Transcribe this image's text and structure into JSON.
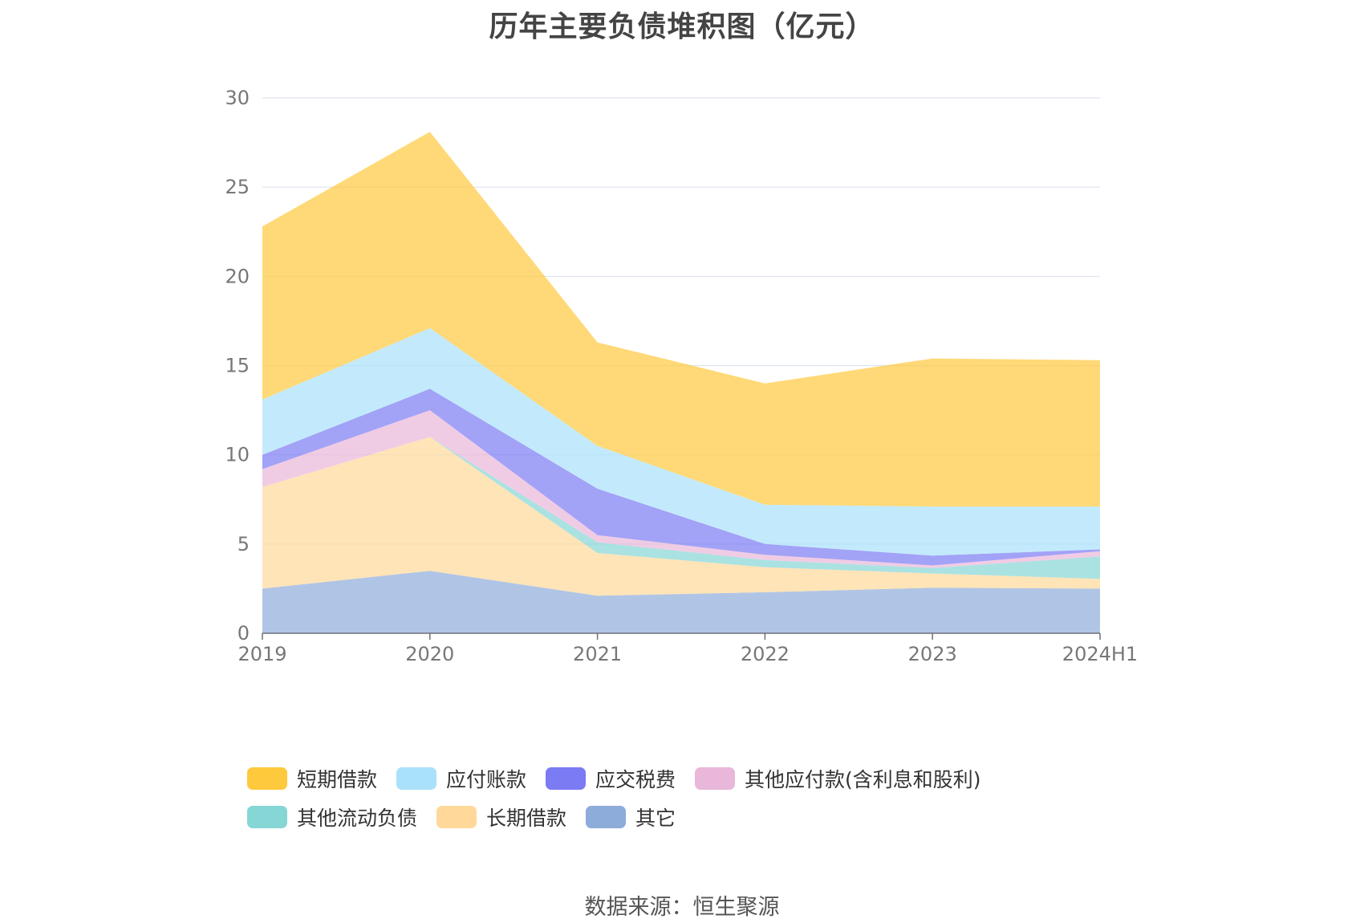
{
  "chart_data": {
    "type": "area",
    "stacked": true,
    "title": "历年主要负债堆积图（亿元）",
    "xlabel": "",
    "ylabel": "",
    "categories": [
      "2019",
      "2020",
      "2021",
      "2022",
      "2023",
      "2024H1"
    ],
    "ylim": [
      0,
      30
    ],
    "yticks": [
      0,
      5,
      10,
      15,
      20,
      25,
      30
    ],
    "grid": true,
    "legend_position": "bottom",
    "series": [
      {
        "name": "其它",
        "color": "#8eacda",
        "values": [
          2.5,
          3.5,
          2.1,
          2.3,
          2.55,
          2.5
        ]
      },
      {
        "name": "长期借款",
        "color": "#ffd89a",
        "values": [
          5.7,
          7.5,
          2.4,
          1.4,
          0.8,
          0.55
        ]
      },
      {
        "name": "其他流动负债",
        "color": "#86d6d6",
        "values": [
          0.0,
          0.0,
          0.6,
          0.4,
          0.3,
          1.25
        ]
      },
      {
        "name": "其他应付款(含利息和股利)",
        "color": "#e9b7d9",
        "values": [
          1.0,
          1.5,
          0.4,
          0.3,
          0.15,
          0.3
        ]
      },
      {
        "name": "应交税费",
        "color": "#7b7bf4",
        "values": [
          0.8,
          1.2,
          2.6,
          0.6,
          0.55,
          0.1
        ]
      },
      {
        "name": "应付账款",
        "color": "#a9e1fb",
        "values": [
          3.1,
          3.4,
          2.4,
          2.2,
          2.75,
          2.4
        ]
      },
      {
        "name": "短期借款",
        "color": "#ffc93d",
        "values": [
          9.7,
          11.0,
          5.8,
          6.8,
          8.3,
          8.2
        ]
      }
    ]
  },
  "legend": {
    "items": [
      {
        "label": "短期借款",
        "color": "#ffc93d"
      },
      {
        "label": "应付账款",
        "color": "#a9e1fb"
      },
      {
        "label": "应交税费",
        "color": "#7b7bf4"
      },
      {
        "label": "其他应付款(含利息和股利)",
        "color": "#e9b7d9"
      },
      {
        "label": "其他流动负债",
        "color": "#86d6d6"
      },
      {
        "label": "长期借款",
        "color": "#ffd89a"
      },
      {
        "label": "其它",
        "color": "#8eacda"
      }
    ]
  },
  "footer": {
    "source": "数据来源：恒生聚源"
  }
}
